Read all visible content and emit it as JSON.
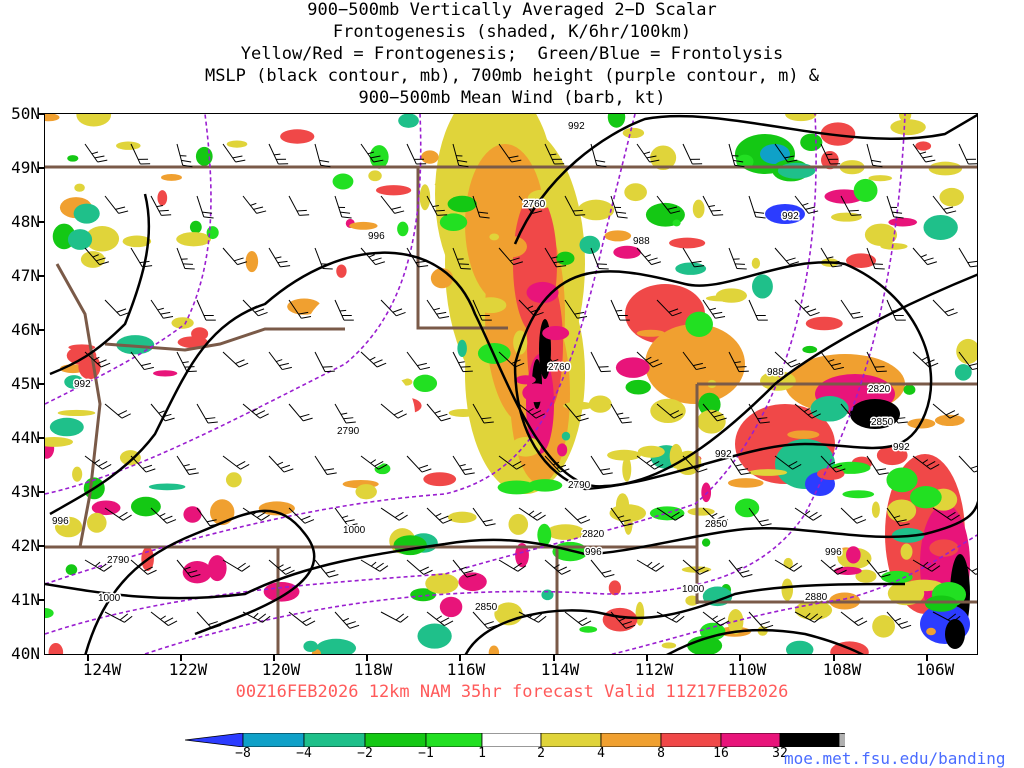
{
  "title": {
    "lines": [
      "900−500mb Vertically Averaged 2−D Scalar",
      "Frontogenesis (shaded, K/6hr/100km)",
      "Yellow/Red = Frontogenesis;  Green/Blue = Frontolysis",
      "MSLP (black contour, mb), 700mb height (purple contour, m) &",
      "900−500mb Mean Wind (barb, kt)"
    ]
  },
  "map": {
    "lat_labels": [
      "50N",
      "49N",
      "48N",
      "47N",
      "46N",
      "45N",
      "44N",
      "43N",
      "42N",
      "41N",
      "40N"
    ],
    "lon_labels": [
      "124W",
      "122W",
      "120W",
      "118W",
      "116W",
      "114W",
      "112W",
      "110W",
      "108W",
      "106W"
    ],
    "mslp_labels": [
      {
        "text": "992"
      },
      {
        "text": "996"
      },
      {
        "text": "988"
      },
      {
        "text": "992"
      },
      {
        "text": "992"
      },
      {
        "text": "988"
      },
      {
        "text": "992"
      },
      {
        "text": "992"
      },
      {
        "text": "996"
      },
      {
        "text": "996"
      },
      {
        "text": "996"
      },
      {
        "text": "1000"
      },
      {
        "text": "1000"
      },
      {
        "text": "1000"
      }
    ],
    "height_labels": [
      {
        "text": "2760"
      },
      {
        "text": "2760"
      },
      {
        "text": "2790"
      },
      {
        "text": "2790"
      },
      {
        "text": "2790"
      },
      {
        "text": "2820"
      },
      {
        "text": "2820"
      },
      {
        "text": "2850"
      },
      {
        "text": "2850"
      },
      {
        "text": "2850"
      },
      {
        "text": "2880"
      }
    ]
  },
  "forecast_line": "00Z16FEB2026 12km NAM 35hr forecast Valid 11Z17FEB2026",
  "colorbar": {
    "labels": [
      "−8",
      "−4",
      "−2",
      "−1",
      "1",
      "2",
      "4",
      "8",
      "16",
      "32"
    ],
    "colors": [
      "#2c3cff",
      "#0fa1c8",
      "#1fc08a",
      "#14c814",
      "#22e022",
      "#ffffff",
      "#e0d43a",
      "#f0a030",
      "#f04848",
      "#e8147a",
      "#000000",
      "#b0b0b0"
    ]
  },
  "url": "moe.met.fsu.edu/banding"
}
